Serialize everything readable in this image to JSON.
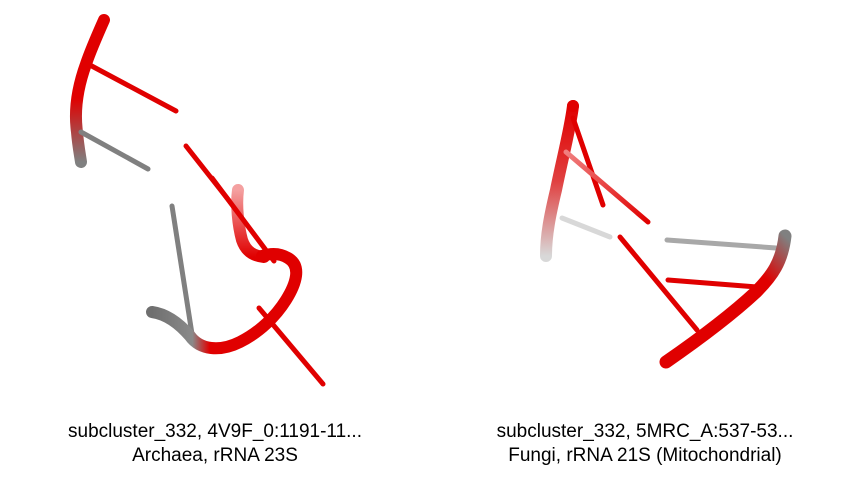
{
  "colors": {
    "red": "#e00000",
    "gray": "#808080",
    "light_gray": "#cfcfcf",
    "background": "#ffffff"
  },
  "panels": [
    {
      "title": "subcluster_332, 4V9F_0:1191-11...",
      "subtitle": "Archaea, rRNA 23S"
    },
    {
      "title": "subcluster_332, 5MRC_A:537-53...",
      "subtitle": "Fungi, rRNA 21S (Mitochondrial)"
    }
  ]
}
